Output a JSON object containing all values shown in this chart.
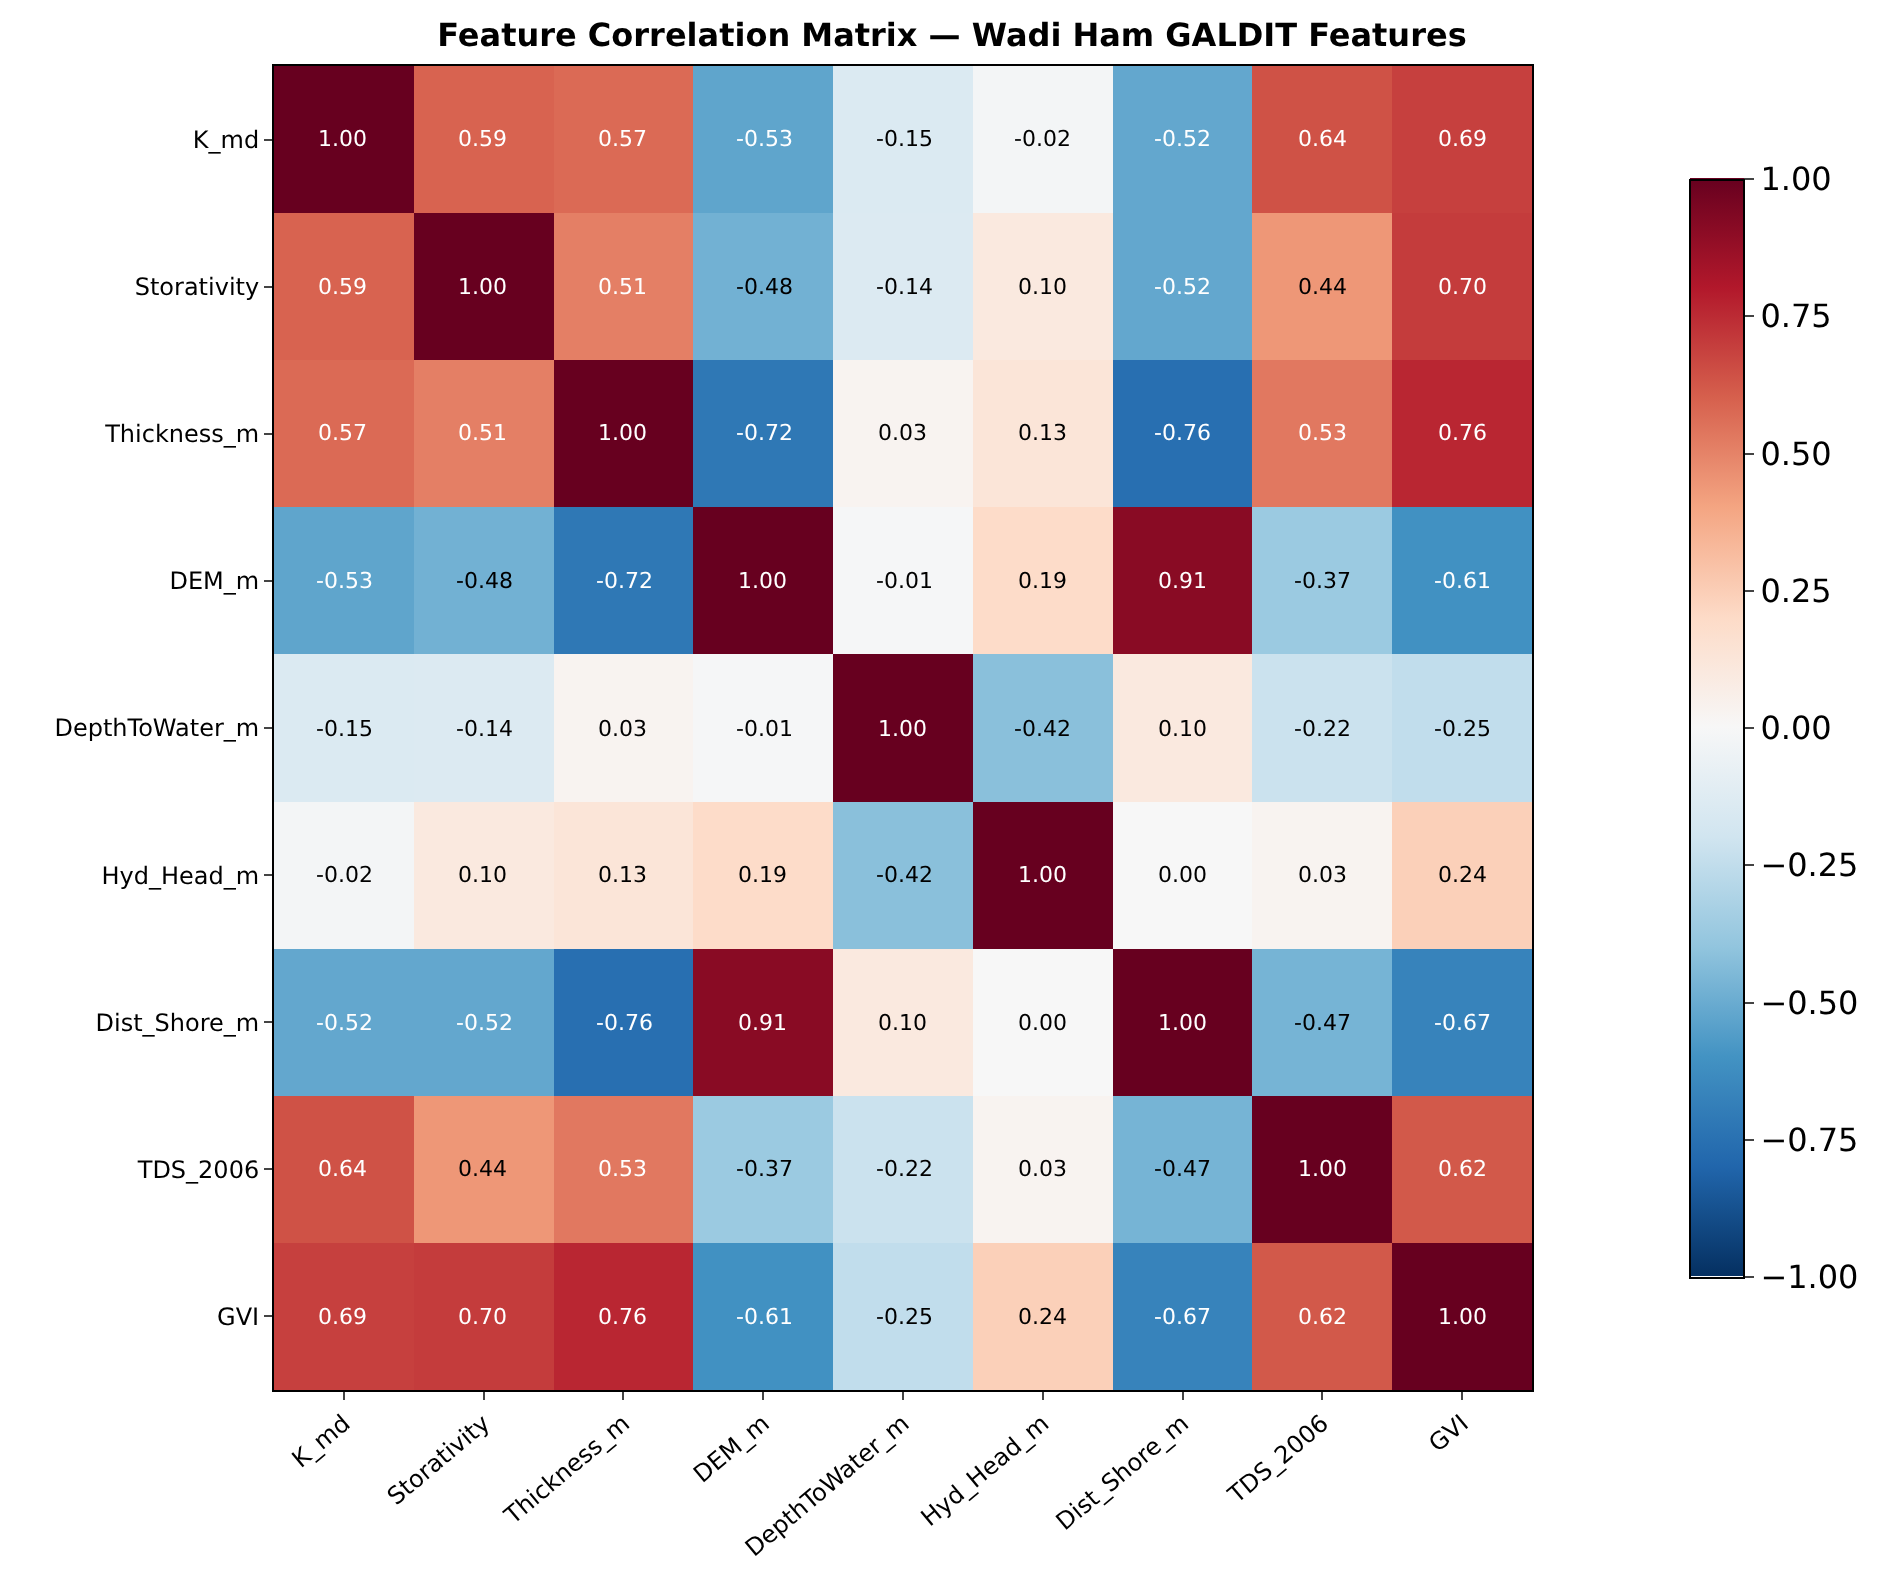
{
  "chart_data": {
    "type": "heatmap",
    "title": "Feature Correlation Matrix — Wadi Ham GALDIT Features",
    "categories": [
      "K_md",
      "Storativity",
      "Thickness_m",
      "DEM_m",
      "DepthToWater_m",
      "Hyd_Head_m",
      "Dist_Shore_m",
      "TDS_2006",
      "GVI"
    ],
    "y_categories": [
      "K_md",
      "Storativity",
      "Thickness_m",
      "DEM_m",
      "DepthToWater_m",
      "Hyd_Head_m",
      "Dist_Shore_m",
      "TDS_2006",
      "GVI"
    ],
    "cells": [
      [
        1.0,
        0.59,
        0.57,
        -0.53,
        -0.15,
        -0.02,
        -0.52,
        0.64,
        0.69
      ],
      [
        0.59,
        1.0,
        0.51,
        -0.48,
        -0.14,
        0.1,
        -0.52,
        0.44,
        0.7
      ],
      [
        0.57,
        0.51,
        1.0,
        -0.72,
        0.03,
        0.13,
        -0.76,
        0.53,
        0.76
      ],
      [
        -0.53,
        -0.48,
        -0.72,
        1.0,
        -0.01,
        0.19,
        0.91,
        -0.37,
        -0.61
      ],
      [
        -0.15,
        -0.14,
        0.03,
        -0.01,
        1.0,
        -0.42,
        0.1,
        -0.22,
        -0.25
      ],
      [
        -0.02,
        0.1,
        0.13,
        0.19,
        -0.42,
        1.0,
        0.0,
        0.03,
        0.24
      ],
      [
        -0.52,
        -0.52,
        -0.76,
        0.91,
        0.1,
        0.0,
        1.0,
        -0.47,
        -0.67
      ],
      [
        0.64,
        0.44,
        0.53,
        -0.37,
        -0.22,
        0.03,
        -0.47,
        1.0,
        0.62
      ],
      [
        0.69,
        0.7,
        0.76,
        -0.61,
        -0.25,
        0.24,
        -0.67,
        0.62,
        1.0
      ]
    ],
    "cell_labels": [
      [
        "1.00",
        "0.59",
        "0.57",
        "-0.53",
        "-0.15",
        "-0.02",
        "-0.52",
        "0.64",
        "0.69"
      ],
      [
        "0.59",
        "1.00",
        "0.51",
        "-0.48",
        "-0.14",
        "0.10",
        "-0.52",
        "0.44",
        "0.70"
      ],
      [
        "0.57",
        "0.51",
        "1.00",
        "-0.72",
        "0.03",
        "0.13",
        "-0.76",
        "0.53",
        "0.76"
      ],
      [
        "-0.53",
        "-0.48",
        "-0.72",
        "1.00",
        "-0.01",
        "0.19",
        "0.91",
        "-0.37",
        "-0.61"
      ],
      [
        "-0.15",
        "-0.14",
        "0.03",
        "-0.01",
        "1.00",
        "-0.42",
        "0.10",
        "-0.22",
        "-0.25"
      ],
      [
        "-0.02",
        "0.10",
        "0.13",
        "0.19",
        "-0.42",
        "1.00",
        "0.00",
        "0.03",
        "0.24"
      ],
      [
        "-0.52",
        "-0.52",
        "-0.76",
        "0.91",
        "0.10",
        "0.00",
        "1.00",
        "-0.47",
        "-0.67"
      ],
      [
        "0.64",
        "0.44",
        "0.53",
        "-0.37",
        "-0.22",
        "0.03",
        "-0.47",
        "1.00",
        "0.62"
      ],
      [
        "0.69",
        "0.70",
        "0.76",
        "-0.61",
        "-0.25",
        "0.24",
        "-0.67",
        "0.62",
        "1.00"
      ]
    ],
    "clim": [
      -1,
      1
    ],
    "cticks": [
      {
        "value": -1,
        "label": "−1.00"
      },
      {
        "value": -0.75,
        "label": "−0.75"
      },
      {
        "value": -0.5,
        "label": "−0.50"
      },
      {
        "value": -0.25,
        "label": "−0.25"
      },
      {
        "value": 0,
        "label": "0.00"
      },
      {
        "value": 0.25,
        "label": "0.25"
      },
      {
        "value": 0.5,
        "label": "0.50"
      },
      {
        "value": 0.75,
        "label": "0.75"
      },
      {
        "value": 1,
        "label": "1.00"
      }
    ]
  }
}
